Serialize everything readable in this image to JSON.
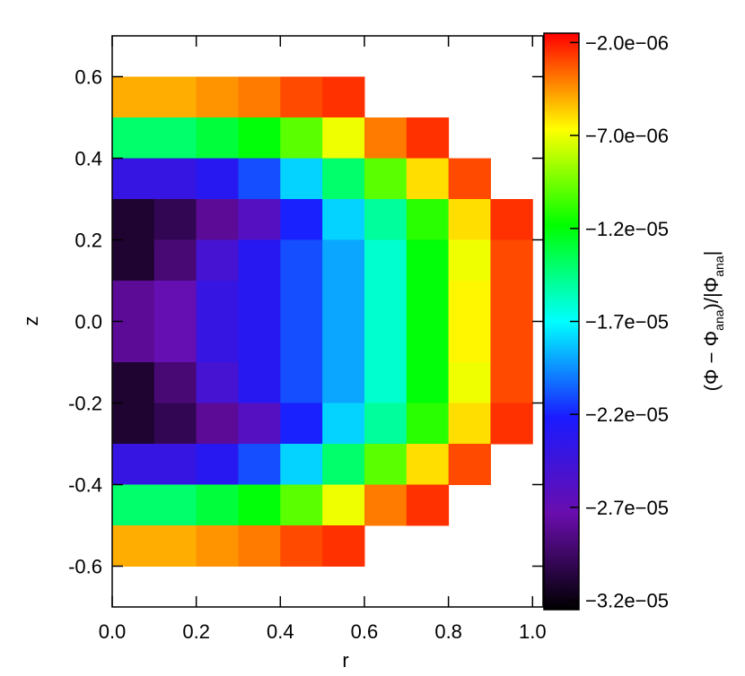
{
  "chart_data": {
    "type": "heatmap",
    "x_label": "r",
    "y_label": "z",
    "colorbar_label": [
      "(Φ − Φ",
      "ana",
      ")/|Φ",
      "ana",
      "|"
    ],
    "x": [
      0.05,
      0.15,
      0.25,
      0.35,
      0.45,
      0.55,
      0.65,
      0.75,
      0.85,
      0.95
    ],
    "y": [
      0.55,
      0.45,
      0.35,
      0.25,
      0.15,
      0.05,
      -0.05,
      -0.15,
      -0.25,
      -0.35,
      -0.45,
      -0.55
    ],
    "values": [
      [
        -5e-06,
        -5e-06,
        -4.5e-06,
        -4e-06,
        -3e-06,
        -2.5e-06,
        null,
        null,
        null,
        null
      ],
      [
        -1.4e-05,
        -1.4e-05,
        -1.3e-05,
        -1.2e-05,
        -1e-05,
        -7e-06,
        -4e-06,
        -2.5e-06,
        null,
        null
      ],
      [
        -2.4e-05,
        -2.4e-05,
        -2.3e-05,
        -2.1e-05,
        -1.8e-05,
        -1.4e-05,
        -1e-05,
        -6e-06,
        -3e-06,
        null
      ],
      [
        -3.1e-05,
        -3e-05,
        -2.8e-05,
        -2.6e-05,
        -2.2e-05,
        -1.8e-05,
        -1.5e-05,
        -1.1e-05,
        -6e-06,
        -2.5e-06
      ],
      [
        -3.1e-05,
        -2.9e-05,
        -2.5e-05,
        -2.3e-05,
        -2.1e-05,
        -1.9e-05,
        -1.6e-05,
        -1.2e-05,
        -7e-06,
        -3e-06
      ],
      [
        -2.8e-05,
        -2.7e-05,
        -2.4e-05,
        -2.3e-05,
        -2.1e-05,
        -1.9e-05,
        -1.6e-05,
        -1.2e-05,
        -6.5e-06,
        -3e-06
      ],
      [
        -2.8e-05,
        -2.7e-05,
        -2.4e-05,
        -2.3e-05,
        -2.1e-05,
        -1.9e-05,
        -1.6e-05,
        -1.2e-05,
        -6.5e-06,
        -3e-06
      ],
      [
        -3.1e-05,
        -2.9e-05,
        -2.5e-05,
        -2.3e-05,
        -2.1e-05,
        -1.9e-05,
        -1.6e-05,
        -1.2e-05,
        -7e-06,
        -3e-06
      ],
      [
        -3.1e-05,
        -3e-05,
        -2.8e-05,
        -2.6e-05,
        -2.2e-05,
        -1.8e-05,
        -1.5e-05,
        -1.1e-05,
        -6e-06,
        -2.5e-06
      ],
      [
        -2.4e-05,
        -2.4e-05,
        -2.3e-05,
        -2.1e-05,
        -1.8e-05,
        -1.4e-05,
        -1e-05,
        -6e-06,
        -3e-06,
        null
      ],
      [
        -1.4e-05,
        -1.4e-05,
        -1.3e-05,
        -1.2e-05,
        -1e-05,
        -7e-06,
        -4e-06,
        -2.5e-06,
        null,
        null
      ],
      [
        -5e-06,
        -5e-06,
        -4.5e-06,
        -4e-06,
        -3e-06,
        -2.5e-06,
        null,
        null,
        null,
        null
      ]
    ],
    "xlim": [
      0,
      1.025
    ],
    "xticks": [
      {
        "value": 0,
        "label": "0.0"
      },
      0.2,
      0.4,
      0.6,
      0.8,
      {
        "value": 1,
        "label": "1.0"
      }
    ],
    "ylim": [
      -0.7,
      0.7
    ],
    "yticks": [
      -0.6,
      -0.4,
      -0.2,
      {
        "value": 0,
        "label": "0.0"
      },
      0.2,
      0.4,
      0.6
    ],
    "clim": [
      -3.25e-05,
      -1.5e-06
    ],
    "cticks": [
      {
        "value": -3.2e-05,
        "label": "−3.2e−05"
      },
      {
        "value": -2.7e-05,
        "label": "−2.7e−05"
      },
      {
        "value": -2.2e-05,
        "label": "−2.2e−05"
      },
      {
        "value": -1.7e-05,
        "label": "−1.7e−05"
      },
      {
        "value": -1.2e-05,
        "label": "−1.2e−05"
      },
      {
        "value": -7e-06,
        "label": "−7.0e−06"
      },
      {
        "value": -2e-06,
        "label": "−2.0e−06"
      }
    ],
    "colorscale": [
      "#000000",
      "#6a0dad",
      "#1a1aff",
      "#00ffff",
      "#00ff00",
      "#ffff00",
      "#ff0000"
    ]
  }
}
